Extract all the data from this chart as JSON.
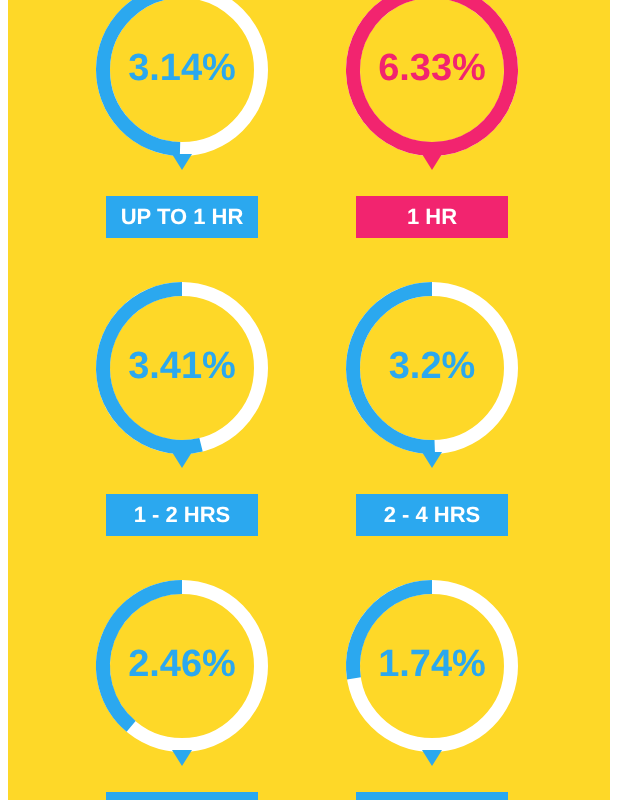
{
  "chart_data": {
    "type": "other",
    "categories": [
      "UP TO 1 HR",
      "1 HR",
      "1 - 2 HRS",
      "2 - 4 HRS",
      null,
      null
    ],
    "values": [
      3.14,
      6.33,
      3.41,
      3.2,
      2.46,
      1.74
    ],
    "value_labels": [
      "3.14%",
      "6.33%",
      "3.41%",
      "3.2%",
      "2.46%",
      "1.74%"
    ],
    "colors": [
      "#2ba8ef",
      "#f2246f",
      "#2ba8ef",
      "#2ba8ef",
      "#2ba8ef",
      "#2ba8ef"
    ]
  }
}
